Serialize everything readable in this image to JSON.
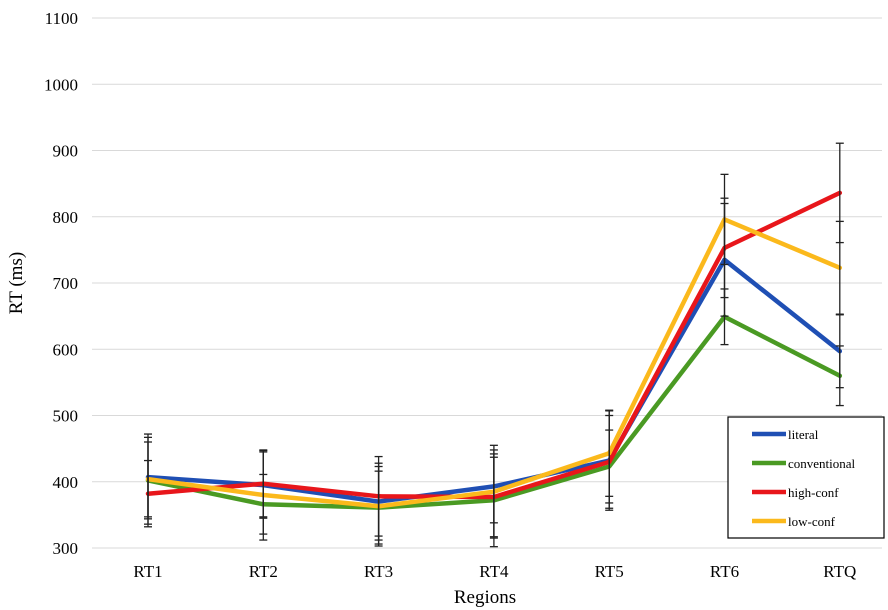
{
  "chart_data": {
    "type": "line",
    "xlabel": "Regions",
    "ylabel": "RT (ms)",
    "ylim": [
      300,
      1100
    ],
    "yticks": [
      300,
      400,
      500,
      600,
      700,
      800,
      900,
      1000,
      1100
    ],
    "grid": true,
    "legend_position": "bottom-right",
    "categories": [
      "RT1",
      "RT2",
      "RT3",
      "RT4",
      "RT5",
      "RT6",
      "RTQ"
    ],
    "series": [
      {
        "name": "literal",
        "color": "#1f4fb4",
        "values": [
          407,
          395,
          370,
          393,
          432,
          735,
          597
        ],
        "error": [
          60,
          50,
          58,
          55,
          75,
          85,
          55
        ]
      },
      {
        "name": "conventional",
        "color": "#4a9a23",
        "values": [
          402,
          366,
          361,
          372,
          423,
          649,
          560
        ],
        "error": [
          58,
          45,
          55,
          70,
          55,
          42,
          45
        ]
      },
      {
        "name": "high-conf",
        "color": "#e8161b",
        "values": [
          382,
          397,
          378,
          377,
          430,
          753,
          836
        ],
        "error": [
          50,
          50,
          60,
          60,
          70,
          75,
          75
        ]
      },
      {
        "name": "low-conf",
        "color": "#fbb91c",
        "values": [
          404,
          380,
          363,
          385,
          443,
          796,
          723
        ],
        "error": [
          68,
          68,
          60,
          70,
          65,
          68,
          70
        ]
      }
    ]
  }
}
